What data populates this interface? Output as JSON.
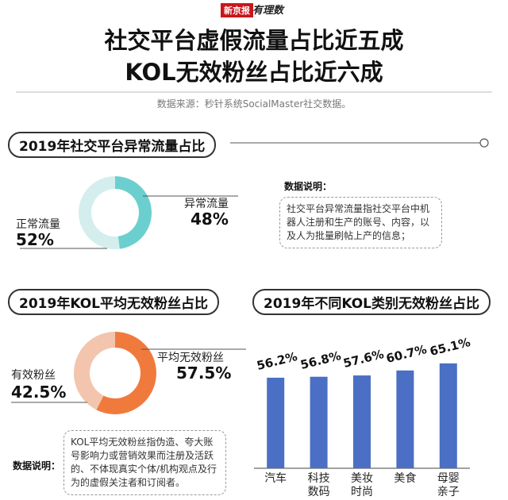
{
  "header": {
    "brand": "新京报",
    "column": "有理数",
    "title": [
      "社交平台虚假流量占比近五成",
      "KOL无效粉丝占比近六成"
    ],
    "source": "数据来源：秒针系统SocialMaster社交数据。"
  },
  "chart_data": [
    {
      "type": "donut",
      "title": "2019年社交平台异常流量占比",
      "categories": [
        "异常流量",
        "正常流量"
      ],
      "values": [
        48,
        52
      ],
      "value_labels": [
        "48%",
        "52%"
      ],
      "colors": [
        "#6ccfcf",
        "#d4eeee"
      ],
      "note_label": "数据说明：",
      "note": "社交平台异常流量指社交平台中机器人注册和生产的账号、内容，以及人为批量刷帖上产的信息；"
    },
    {
      "type": "donut",
      "title": "2019年KOL平均无效粉丝占比",
      "categories": [
        "平均无效粉丝",
        "有效粉丝"
      ],
      "values": [
        57.5,
        42.5
      ],
      "value_labels": [
        "57.5%",
        "42.5%"
      ],
      "colors": [
        "#f07a3c",
        "#f3c5ae"
      ],
      "note_label": "数据说明：",
      "note": "KOL平均无效粉丝指伪造、夸大账号影响力或营销效果而注册及活跃的、不体现真实个体/机构观点及行为的虚假关注者和订阅者。"
    },
    {
      "type": "bar",
      "title": "2019年不同KOL类别无效粉丝占比",
      "categories": [
        "汽车",
        "科技数码",
        "美妆时尚",
        "美食",
        "母婴亲子"
      ],
      "values": [
        56.2,
        56.8,
        57.6,
        60.7,
        65.1
      ],
      "value_labels": [
        "56.2%",
        "56.8%",
        "57.6%",
        "60.7%",
        "65.1%"
      ],
      "color": "#4a6fc4"
    }
  ]
}
